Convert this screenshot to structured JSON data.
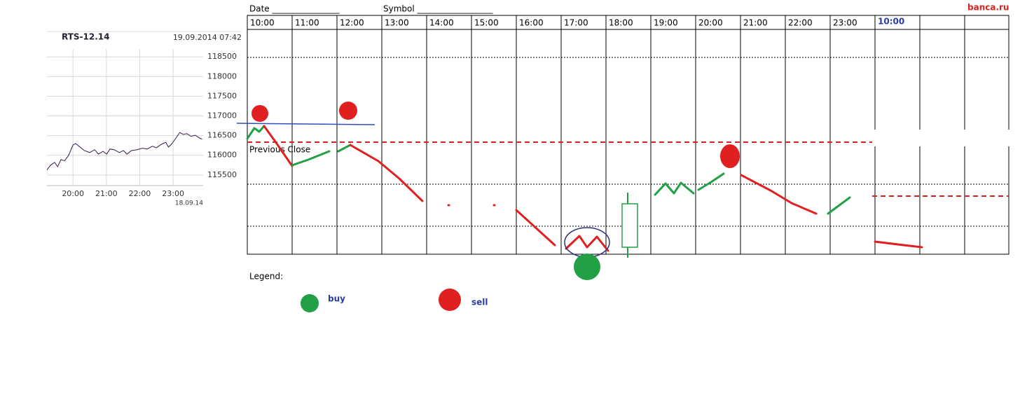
{
  "chart_data": {
    "type": "line",
    "title": "RTS-12.14",
    "subtitle": "19.09.2014 07:42",
    "footnote": "18.09.14",
    "x": [
      19.22,
      19.33,
      19.45,
      19.54,
      19.64,
      19.75,
      19.87,
      20.0,
      20.08,
      20.21,
      20.34,
      20.5,
      20.65,
      20.76,
      20.9,
      21.01,
      21.11,
      21.24,
      21.39,
      21.51,
      21.62,
      21.75,
      21.91,
      22.08,
      22.23,
      22.38,
      22.5,
      22.65,
      22.78,
      22.86,
      22.95,
      23.07,
      23.2,
      23.3,
      23.41,
      23.54,
      23.66,
      23.79,
      23.87
    ],
    "series": [
      {
        "color": "#3a1a4a",
        "values": [
          115630,
          115750,
          115820,
          115710,
          115890,
          115860,
          116000,
          116260,
          116300,
          116210,
          116120,
          116070,
          116140,
          116030,
          116100,
          116030,
          116160,
          116140,
          116070,
          116120,
          116030,
          116120,
          116140,
          116180,
          116160,
          116230,
          116190,
          116280,
          116330,
          116210,
          116280,
          116420,
          116580,
          116530,
          116550,
          116480,
          116510,
          116440,
          116410
        ]
      }
    ],
    "xlim": [
      19.22,
      23.9
    ],
    "xticks": [
      {
        "value": 20,
        "label": "20:00"
      },
      {
        "value": 21,
        "label": "21:00"
      },
      {
        "value": 22,
        "label": "22:00"
      },
      {
        "value": 23,
        "label": "23:00"
      }
    ],
    "ylim": [
      115230,
      118700
    ],
    "yticks": [
      115500,
      116000,
      116500,
      117000,
      117500,
      118000,
      118500
    ],
    "grid": true
  },
  "sheet": {
    "date": "Date ________________",
    "symbol": "Symbol __________________",
    "brand": "banca.ru",
    "hours": [
      "10:00",
      "11:00",
      "12:00",
      "13:00",
      "14:00",
      "15:00",
      "16:00",
      "17:00",
      "18:00",
      "19:00",
      "20:00",
      "21:00",
      "22:00",
      "23:00",
      "10:00"
    ],
    "previous_close": "Previous Close",
    "legend": {
      "title": "Legend:",
      "buy": "buy",
      "sell": "sell"
    }
  }
}
